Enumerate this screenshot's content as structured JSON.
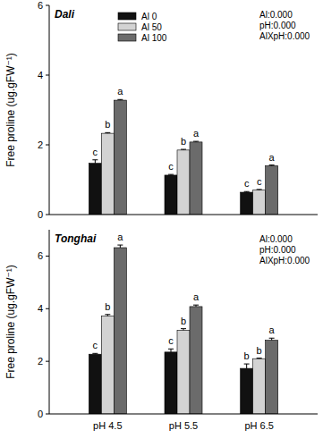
{
  "chart_data": [
    {
      "type": "bar",
      "title": "Dali",
      "y_label": "Free proline (ug.gFW⁻¹)",
      "categories": [
        "pH 4.5",
        "pH 5.5",
        "pH 6.5"
      ],
      "series": [
        {
          "name": "Al 0",
          "color": "#111111",
          "values": [
            1.47,
            1.13,
            0.64
          ],
          "errors": [
            0.1,
            0.02,
            0.02
          ],
          "letters": [
            "c",
            "c",
            "c"
          ]
        },
        {
          "name": "Al 50",
          "color": "#d3d3d3",
          "values": [
            2.33,
            1.85,
            0.7
          ],
          "errors": [
            0.02,
            0.02,
            0.02
          ],
          "letters": [
            "b",
            "b",
            "c"
          ]
        },
        {
          "name": "Al 100",
          "color": "#6b6b6b",
          "values": [
            3.28,
            2.08,
            1.4
          ],
          "errors": [
            0.02,
            0.02,
            0.02
          ],
          "letters": [
            "a",
            "a",
            "a"
          ]
        }
      ],
      "annotations": [
        "Al:0.000",
        "pH:0.000",
        "AlXpH:0.000"
      ],
      "ylim": [
        0,
        6
      ],
      "yticks": [
        0,
        2,
        4,
        6
      ],
      "legend": "top",
      "tick_labels": "y",
      "grid": false
    },
    {
      "type": "bar",
      "title": "Tonghai",
      "y_label": "Free proline (ug.gFW⁻¹)",
      "categories": [
        "pH 4.5",
        "pH 5.5",
        "pH 6.5"
      ],
      "series": [
        {
          "color": "#111111",
          "values": [
            2.27,
            2.35,
            1.73
          ],
          "errors": [
            0.03,
            0.12,
            0.17
          ],
          "letters": [
            "c",
            "c",
            "b"
          ]
        },
        {
          "color": "#d3d3d3",
          "values": [
            3.72,
            3.18,
            2.1
          ],
          "errors": [
            0.06,
            0.06,
            0.02
          ],
          "letters": [
            "b",
            "b",
            "b"
          ]
        },
        {
          "color": "#6b6b6b",
          "values": [
            6.32,
            4.08,
            2.8
          ],
          "errors": [
            0.1,
            0.06,
            0.08
          ],
          "letters": [
            "a",
            "a",
            "a"
          ]
        }
      ],
      "annotations": [
        "Al:0.000",
        "pH:0.000",
        "AlXpH:0.000"
      ],
      "ylim": [
        0,
        7
      ],
      "yticks": [
        0,
        2,
        4,
        6
      ],
      "tick_labels": true,
      "grid": false
    }
  ]
}
